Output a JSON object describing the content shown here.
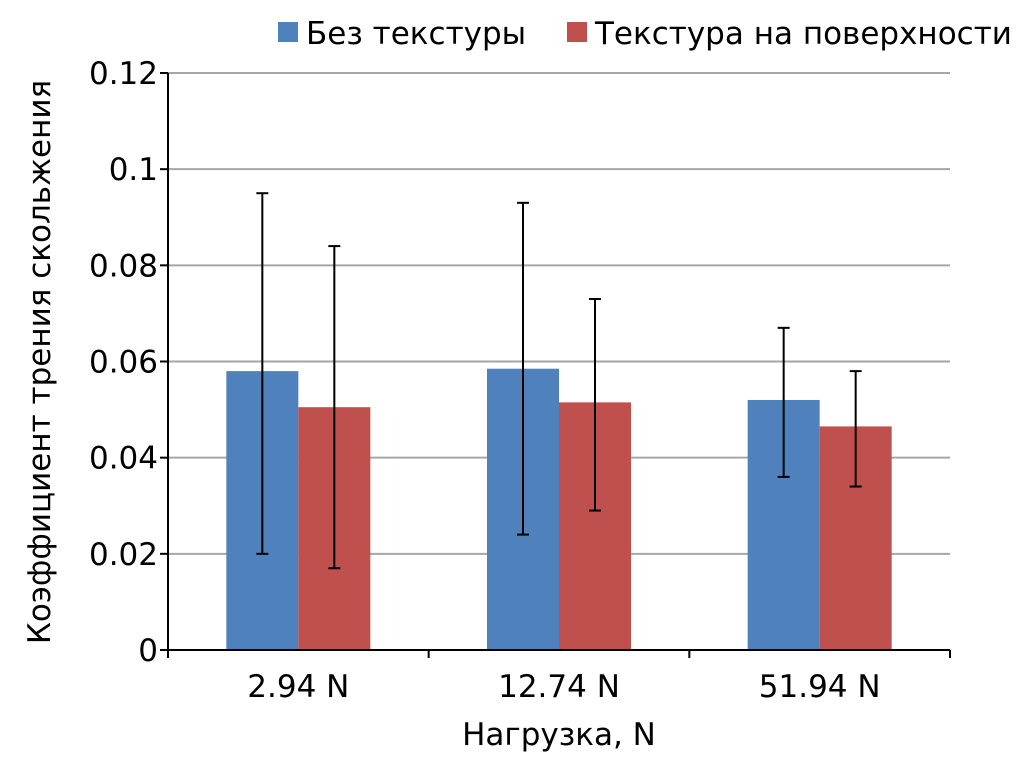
{
  "chart_data": {
    "type": "bar",
    "title": "",
    "xlabel": "Нагрузка, N",
    "ylabel": "Коэффициент трения скольжения",
    "categories": [
      "2.94 N",
      "12.74 N",
      "51.94 N"
    ],
    "ylim": [
      0,
      0.12
    ],
    "yticks": [
      0,
      0.02,
      0.04,
      0.06,
      0.08,
      0.1,
      0.12
    ],
    "ytick_labels": [
      "0",
      "0.02",
      "0.04",
      "0.06",
      "0.08",
      "0.1",
      "0.12"
    ],
    "grid": true,
    "legend_position": "top",
    "series": [
      {
        "name": "Без текстуры",
        "color": "#4f81bd",
        "values": [
          0.058,
          0.0585,
          0.052
        ],
        "error_high": [
          0.095,
          0.093,
          0.067
        ],
        "error_low": [
          0.02,
          0.024,
          0.036
        ]
      },
      {
        "name": "Текстура на поверхности",
        "color": "#c0504d",
        "values": [
          0.0505,
          0.0515,
          0.0465
        ],
        "error_high": [
          0.084,
          0.073,
          0.058
        ],
        "error_low": [
          0.017,
          0.029,
          0.034
        ]
      }
    ]
  }
}
